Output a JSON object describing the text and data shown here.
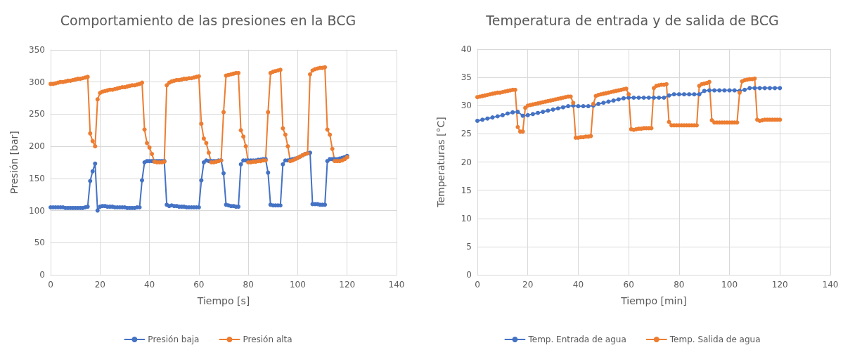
{
  "chart_data": [
    {
      "type": "line",
      "title": "Comportamiento de las presiones en la BCG",
      "xlabel": "Tiempo [s]",
      "ylabel": "Presión [bar]",
      "x": [
        0,
        1,
        2,
        3,
        4,
        5,
        6,
        7,
        8,
        9,
        10,
        11,
        12,
        13,
        14,
        15,
        16,
        17,
        18,
        19,
        20,
        21,
        22,
        23,
        24,
        25,
        26,
        27,
        28,
        29,
        30,
        31,
        32,
        33,
        34,
        35,
        36,
        37,
        38,
        39,
        40,
        41,
        42,
        43,
        44,
        45,
        46,
        47,
        48,
        49,
        50,
        51,
        52,
        53,
        54,
        55,
        56,
        57,
        58,
        59,
        60,
        61,
        62,
        63,
        64,
        65,
        66,
        67,
        68,
        69,
        70,
        71,
        72,
        73,
        74,
        75,
        76,
        77,
        78,
        79,
        80,
        81,
        82,
        83,
        84,
        85,
        86,
        87,
        88,
        89,
        90,
        91,
        92,
        93,
        94,
        95,
        96,
        97,
        98,
        99,
        100,
        101,
        102,
        103,
        104,
        105,
        106,
        107,
        108,
        109,
        110,
        111,
        112,
        113,
        114,
        115,
        116,
        117,
        118,
        119,
        120
      ],
      "series": [
        {
          "name": "Presión baja",
          "color": "#4472c4",
          "values": [
            105,
            105,
            105,
            105,
            105,
            105,
            104,
            104,
            104,
            104,
            104,
            104,
            104,
            104,
            105,
            106,
            146,
            161,
            173,
            100,
            106,
            107,
            107,
            106,
            106,
            106,
            105,
            105,
            105,
            105,
            105,
            104,
            104,
            104,
            104,
            105,
            105,
            147,
            175,
            177,
            177,
            177,
            177,
            177,
            177,
            177,
            177,
            109,
            107,
            108,
            107,
            107,
            106,
            106,
            106,
            105,
            105,
            105,
            105,
            105,
            105,
            147,
            175,
            178,
            177,
            177,
            177,
            177,
            178,
            178,
            158,
            109,
            108,
            107,
            107,
            106,
            106,
            172,
            178,
            178,
            178,
            178,
            178,
            178,
            179,
            179,
            180,
            180,
            159,
            109,
            108,
            108,
            108,
            108,
            172,
            178,
            178,
            179,
            180,
            181,
            182,
            184,
            186,
            188,
            189,
            190,
            110,
            110,
            110,
            109,
            109,
            109,
            177,
            180,
            180,
            180,
            180,
            181,
            182,
            183,
            185
          ]
        },
        {
          "name": "Presión alta",
          "color": "#ed7d31",
          "values": [
            297,
            297,
            298,
            299,
            300,
            300,
            301,
            302,
            302,
            303,
            304,
            305,
            305,
            306,
            307,
            308,
            220,
            208,
            200,
            273,
            283,
            285,
            286,
            287,
            288,
            288,
            289,
            290,
            291,
            292,
            292,
            293,
            294,
            295,
            295,
            296,
            297,
            299,
            226,
            205,
            198,
            188,
            176,
            175,
            175,
            175,
            176,
            295,
            299,
            301,
            302,
            303,
            303,
            304,
            305,
            305,
            306,
            306,
            307,
            308,
            309,
            235,
            212,
            205,
            190,
            175,
            175,
            176,
            177,
            178,
            253,
            310,
            311,
            312,
            313,
            314,
            314,
            225,
            215,
            200,
            175,
            175,
            176,
            176,
            177,
            177,
            178,
            178,
            253,
            314,
            316,
            317,
            318,
            319,
            228,
            218,
            200,
            177,
            178,
            180,
            182,
            184,
            186,
            188,
            189,
            312,
            318,
            320,
            321,
            322,
            322,
            323,
            226,
            218,
            196,
            177,
            177,
            177,
            178,
            180,
            183
          ]
        }
      ],
      "xlim": [
        0,
        140
      ],
      "xticks": [
        0,
        20,
        40,
        60,
        80,
        100,
        120,
        140
      ],
      "ylim": [
        0,
        350
      ],
      "yticks": [
        0,
        50,
        100,
        150,
        200,
        250,
        300,
        350
      ],
      "grid": true,
      "legend": "bottom",
      "marker": "circle"
    },
    {
      "type": "line",
      "title": "Temperatura de entrada y de salida de BCG",
      "xlabel": "Tiempo [min]",
      "ylabel": "Temperaturas [°C]",
      "x": [
        0,
        1,
        2,
        3,
        4,
        5,
        6,
        7,
        8,
        9,
        10,
        11,
        12,
        13,
        14,
        15,
        16,
        17,
        18,
        19,
        20,
        21,
        22,
        23,
        24,
        25,
        26,
        27,
        28,
        29,
        30,
        31,
        32,
        33,
        34,
        35,
        36,
        37,
        38,
        39,
        40,
        41,
        42,
        43,
        44,
        45,
        46,
        47,
        48,
        49,
        50,
        51,
        52,
        53,
        54,
        55,
        56,
        57,
        58,
        59,
        60,
        61,
        62,
        63,
        64,
        65,
        66,
        67,
        68,
        69,
        70,
        71,
        72,
        73,
        74,
        75,
        76,
        77,
        78,
        79,
        80,
        81,
        82,
        83,
        84,
        85,
        86,
        87,
        88,
        89,
        90,
        91,
        92,
        93,
        94,
        95,
        96,
        97,
        98,
        99,
        100,
        101,
        102,
        103,
        104,
        105,
        106,
        107,
        108,
        109,
        110,
        111,
        112,
        113,
        114,
        115,
        116,
        117,
        118,
        119,
        120
      ],
      "series": [
        {
          "name": "Temp. Entrada de agua",
          "color": "#4472c4",
          "x": [
            0,
            2,
            4,
            6,
            8,
            10,
            12,
            14,
            16,
            18,
            20,
            22,
            24,
            26,
            28,
            30,
            32,
            34,
            36,
            38,
            40,
            42,
            44,
            46,
            48,
            50,
            52,
            54,
            56,
            58,
            60,
            62,
            64,
            66,
            68,
            70,
            72,
            74,
            76,
            78,
            80,
            82,
            84,
            86,
            88,
            90,
            92,
            94,
            96,
            98,
            100,
            102,
            104,
            106,
            108,
            110,
            112,
            114,
            116,
            118,
            120
          ],
          "values": [
            27.3,
            27.5,
            27.7,
            27.9,
            28.1,
            28.3,
            28.6,
            28.8,
            28.9,
            28.2,
            28.3,
            28.5,
            28.7,
            28.9,
            29.1,
            29.3,
            29.5,
            29.7,
            29.9,
            30.0,
            29.9,
            29.9,
            29.9,
            30.0,
            30.3,
            30.5,
            30.7,
            30.9,
            31.1,
            31.3,
            31.4,
            31.4,
            31.4,
            31.4,
            31.4,
            31.4,
            31.4,
            31.4,
            31.8,
            32.0,
            32.0,
            32.0,
            32.0,
            32.0,
            32.0,
            32.6,
            32.7,
            32.7,
            32.7,
            32.7,
            32.7,
            32.7,
            32.6,
            32.8,
            33.1,
            33.1,
            33.1,
            33.1,
            33.1,
            33.1,
            33.1
          ]
        },
        {
          "name": "Temp. Salida de agua",
          "color": "#ed7d31",
          "values": [
            31.5,
            31.6,
            31.7,
            31.8,
            31.9,
            32.0,
            32.1,
            32.2,
            32.3,
            32.3,
            32.4,
            32.5,
            32.6,
            32.7,
            32.8,
            32.8,
            26.2,
            25.4,
            25.4,
            29.6,
            30.0,
            30.1,
            30.2,
            30.3,
            30.4,
            30.5,
            30.6,
            30.7,
            30.8,
            30.9,
            31.0,
            31.1,
            31.2,
            31.3,
            31.4,
            31.5,
            31.6,
            31.6,
            30.5,
            24.3,
            24.3,
            24.4,
            24.4,
            24.5,
            24.5,
            24.6,
            30.3,
            31.7,
            31.9,
            32.0,
            32.1,
            32.2,
            32.3,
            32.4,
            32.5,
            32.6,
            32.7,
            32.8,
            32.9,
            33.0,
            32.0,
            25.8,
            25.7,
            25.8,
            25.9,
            25.9,
            26.0,
            26.0,
            26.0,
            26.0,
            33.1,
            33.5,
            33.6,
            33.7,
            33.7,
            33.8,
            27.1,
            26.5,
            26.5,
            26.5,
            26.5,
            26.5,
            26.5,
            26.5,
            26.5,
            26.5,
            26.5,
            26.5,
            33.5,
            33.8,
            33.9,
            34.0,
            34.2,
            27.4,
            27.0,
            27.0,
            27.0,
            27.0,
            27.0,
            27.0,
            27.0,
            27.0,
            27.0,
            27.0,
            32.3,
            34.3,
            34.5,
            34.6,
            34.7,
            34.7,
            34.8,
            27.5,
            27.3,
            27.4,
            27.5,
            27.5,
            27.5,
            27.5,
            27.5,
            27.5,
            27.5
          ]
        }
      ],
      "xlim": [
        0,
        140
      ],
      "xticks": [
        0,
        20,
        40,
        60,
        80,
        100,
        120,
        140
      ],
      "ylim": [
        0,
        40
      ],
      "yticks": [
        0,
        5,
        10,
        15,
        20,
        25,
        30,
        35,
        40
      ],
      "grid": true,
      "legend": "bottom",
      "marker": "circle"
    }
  ]
}
